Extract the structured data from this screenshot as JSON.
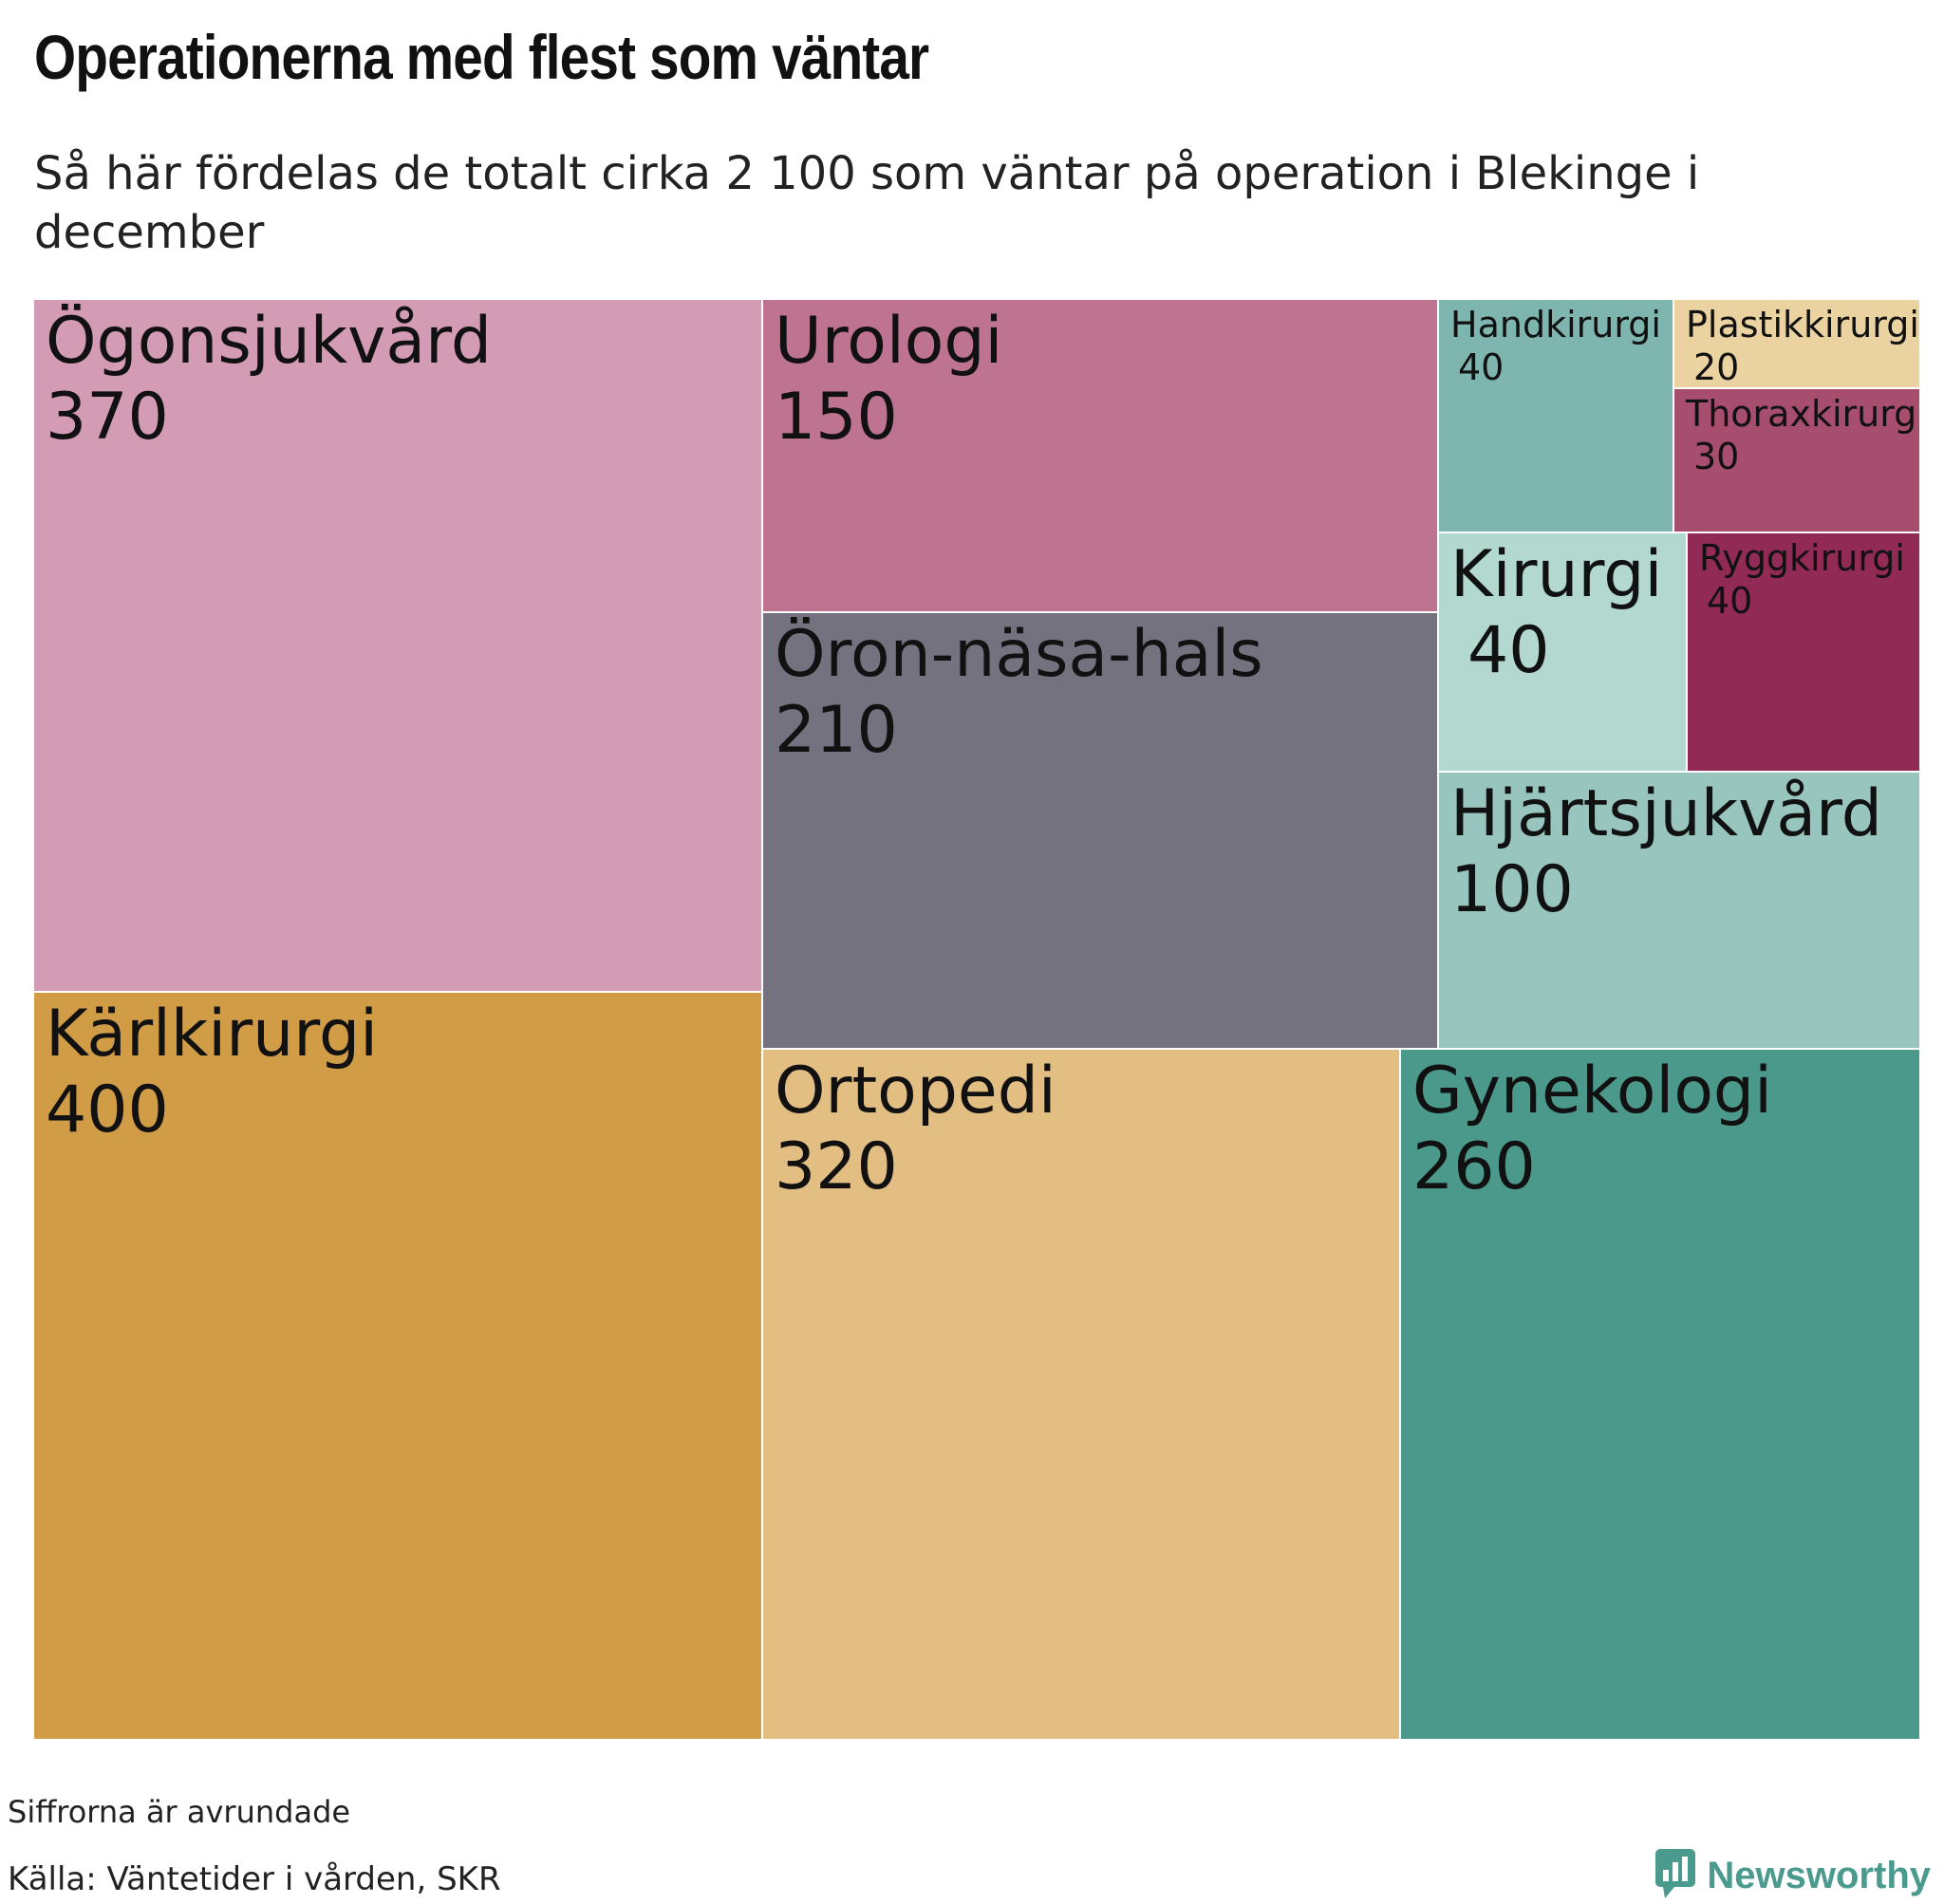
{
  "title": "Operationerna med flest som väntar",
  "subtitle": "Så här fördelas de totalt cirka 2 100 som väntar på operation i Blekinge i december",
  "footer": {
    "note": "Siffrorna är avrundade",
    "source": "Källa: Väntetider i vården, SKR",
    "brand": "Newsworthy",
    "brand_icon": "newsworthy-logo-icon",
    "brand_color": "#4a9a8d"
  },
  "chart_data": {
    "type": "treemap",
    "total_approx": 2100,
    "items": [
      {
        "label": "Ögonsjukvård",
        "value": 370,
        "color": "#d49cb4"
      },
      {
        "label": "Kärlkirurgi",
        "value": 400,
        "color": "#d09c46"
      },
      {
        "label": "Urologi",
        "value": 150,
        "color": "#be7490"
      },
      {
        "label": "Öron-näsa-hals",
        "value": 210,
        "color": "#74727f"
      },
      {
        "label": "Ortopedi",
        "value": 320,
        "color": "#e3be82"
      },
      {
        "label": "Gynekologi",
        "value": 260,
        "color": "#4b998b"
      },
      {
        "label": "Handkirurgi",
        "value": 40,
        "color": "#7eb5ae"
      },
      {
        "label": "Plastikkirurgi",
        "value": 20,
        "color": "#ead3a0"
      },
      {
        "label": "Thoraxkirurgi",
        "value": 30,
        "color": "#a74e6e"
      },
      {
        "label": "Kirurgi",
        "value": 40,
        "color": "#b2d8d0"
      },
      {
        "label": "Ryggkirurgi",
        "value": 40,
        "color": "#912b56"
      },
      {
        "label": "Hjärtsjukvård",
        "value": 100,
        "color": "#98c6bf"
      }
    ]
  }
}
